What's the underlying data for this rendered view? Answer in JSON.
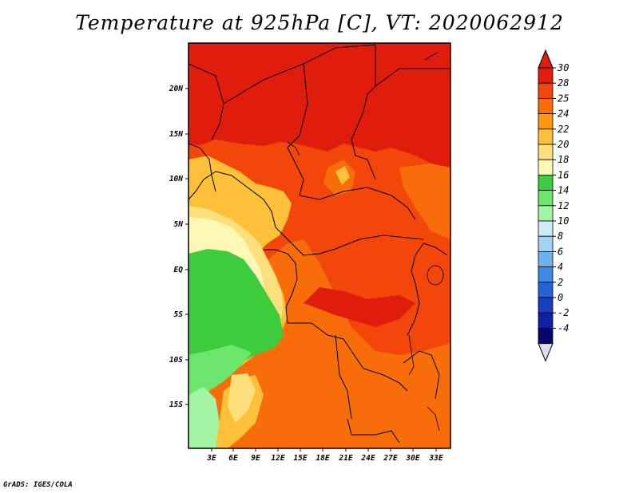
{
  "title": "Temperature at 925hPa [C], VT: 2020062912",
  "credit": "GrADS: IGES/COLA",
  "map": {
    "lon_labels": [
      "3E",
      "6E",
      "9E",
      "12E",
      "15E",
      "18E",
      "21E",
      "24E",
      "27E",
      "30E",
      "33E"
    ],
    "lat_labels": [
      "20N",
      "15N",
      "10N",
      "5N",
      "EQ",
      "5S",
      "10S",
      "15S"
    ]
  },
  "colorbar": {
    "labels": [
      "30",
      "28",
      "25",
      "24",
      "22",
      "20",
      "18",
      "16",
      "14",
      "12",
      "10",
      "8",
      "6",
      "4",
      "2",
      "0",
      "-2",
      "-4"
    ],
    "colors": [
      "#e01c0c",
      "#f2460a",
      "#f76d09",
      "#fb9810",
      "#fcc138",
      "#fde07d",
      "#fdf8b6",
      "#3ccc3c",
      "#6ce66c",
      "#a3f5a3",
      "#cdeaf6",
      "#a2d3f2",
      "#6bb3ec",
      "#4089e3",
      "#2463d6",
      "#163fc2",
      "#0c22a0",
      "#05086a"
    ],
    "top_color": "#e01c0c",
    "bottom_color": "#dcdcf4"
  },
  "legend_colors": {
    "hot": "#e01c0c",
    "warm": "#f2460a",
    "orange": "#f76d09",
    "amber": "#fb9810",
    "gold": "#fcc138",
    "yellow": "#fde07d",
    "pale": "#fdf8b6",
    "green": "#3ccc3c",
    "lightgreen": "#6ce66c",
    "palegreen": "#a3f5a3"
  }
}
